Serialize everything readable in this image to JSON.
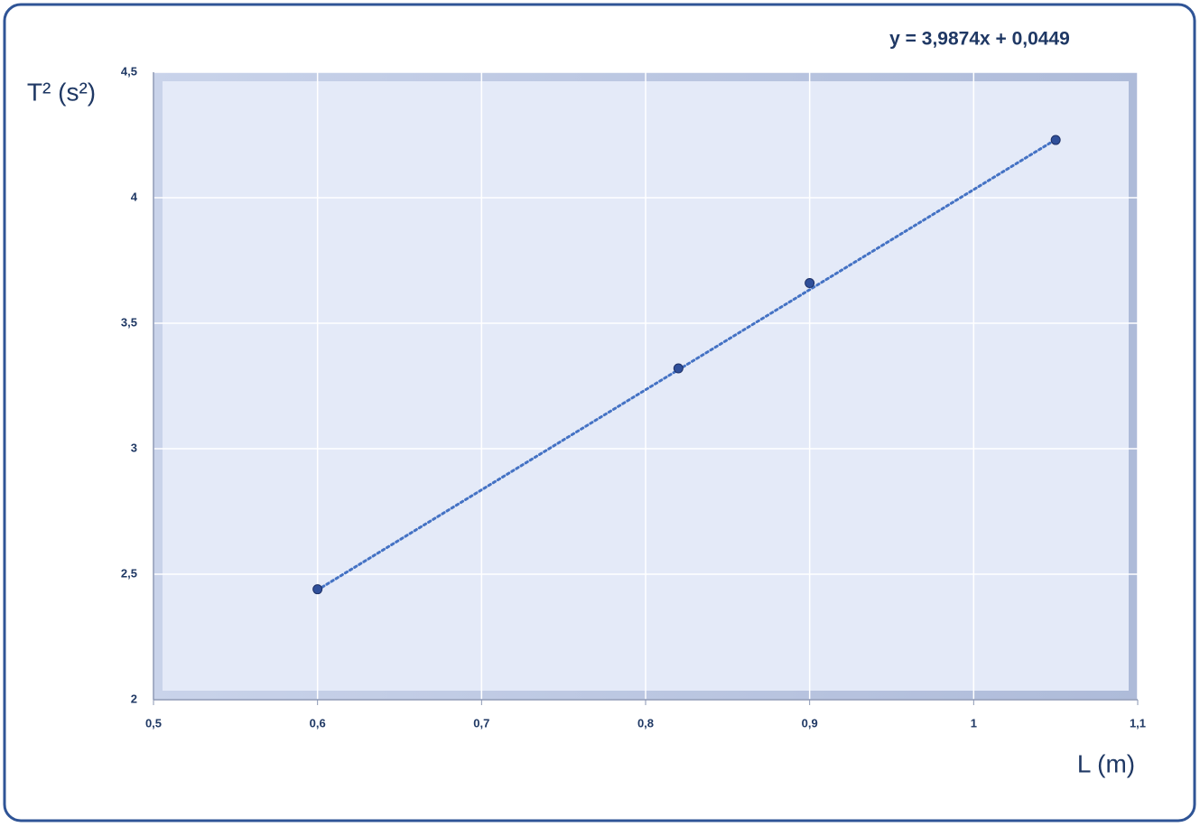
{
  "chart_data": {
    "type": "scatter",
    "x_label": "L (m)",
    "y_label": "T² (s²)",
    "x": [
      0.6,
      0.82,
      0.9,
      1.05
    ],
    "series": [
      {
        "color": "#2f4f9a",
        "values": [
          2.44,
          3.32,
          3.66,
          4.23
        ]
      }
    ],
    "trendline": {
      "label": "y = 3,9874x + 0,0449",
      "slope": 3.9874,
      "intercept": 0.0449,
      "color": "#4472c4"
    },
    "xlim": [
      0.5,
      1.1
    ],
    "xticks": [
      {
        "value": 0.5,
        "label": "0,5"
      },
      {
        "value": 0.6,
        "label": "0,6"
      },
      {
        "value": 0.7,
        "label": "0,7"
      },
      {
        "value": 0.8,
        "label": "0,8"
      },
      {
        "value": 0.9,
        "label": "0,9"
      },
      1,
      {
        "value": 1.1,
        "label": "1,1"
      }
    ],
    "ylim": [
      2,
      4.5
    ],
    "yticks": [
      2,
      {
        "value": 2.5,
        "label": "2,5"
      },
      3,
      {
        "value": 3.5,
        "label": "3,5"
      },
      4,
      {
        "value": 4.5,
        "label": "4,5"
      }
    ],
    "grid": true
  }
}
